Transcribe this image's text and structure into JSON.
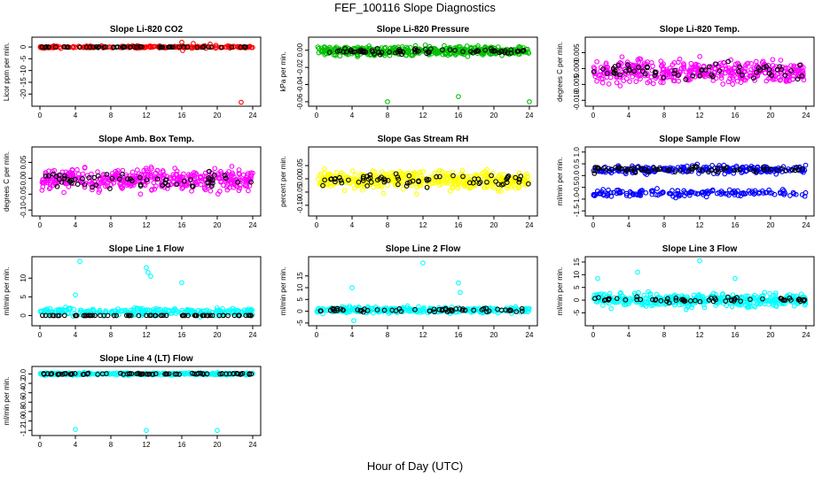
{
  "figure": {
    "title": "FEF_100116  Slope Diagnostics",
    "xlabel": "Hour of Day (UTC)"
  },
  "chart_data": [
    {
      "type": "scatter",
      "title": "Slope Li-820 CO2",
      "ylabel": "Licor ppm per min.",
      "color": "#ff0000",
      "xlim": [
        0,
        24
      ],
      "ylim": [
        -24,
        3
      ],
      "yticks": [
        0,
        -5,
        -10,
        -15,
        -20
      ],
      "ytick_labels": [
        "0",
        "-5",
        "-10",
        "-15",
        "-20"
      ],
      "xticks": [
        0,
        4,
        8,
        12,
        16,
        20,
        24
      ],
      "center": 0,
      "spread": 0.6,
      "n": 220,
      "pattern": "band",
      "outliers": [
        [
          16,
          2
        ],
        [
          17.3,
          1.5
        ],
        [
          16.1,
          -1.5
        ],
        [
          22.7,
          -23.5
        ],
        [
          19.2,
          1.2
        ]
      ],
      "black_spread": 0.3,
      "black_n": 60
    },
    {
      "type": "scatter",
      "title": "Slope Li-820 Pressure",
      "ylabel": "kPa per min.",
      "color": "#00c000",
      "xlim": [
        0,
        24
      ],
      "ylim": [
        -0.062,
        0.012
      ],
      "yticks": [
        0,
        -0.02,
        -0.04,
        -0.06
      ],
      "ytick_labels": [
        "0.00",
        "-0.02",
        "-0.04",
        "-0.06"
      ],
      "xticks": [
        0,
        4,
        8,
        12,
        16,
        20,
        24
      ],
      "center": -0.001,
      "spread": 0.007,
      "n": 400,
      "pattern": "band",
      "outliers": [
        [
          8,
          -0.06
        ],
        [
          16,
          -0.054
        ],
        [
          24,
          -0.06
        ]
      ],
      "black_spread": 0.004,
      "black_n": 70
    },
    {
      "type": "scatter",
      "title": "Slope Li-820 Temp.",
      "ylabel": "degrees C per min.",
      "color": "#ff00ff",
      "xlim": [
        0,
        24
      ],
      "ylim": [
        -0.011,
        0.009
      ],
      "yticks": [
        0.005,
        0,
        -0.005,
        -0.01
      ],
      "ytick_labels": [
        "0.005",
        "0.000",
        "-0.005",
        "-0.010"
      ],
      "xticks": [
        0,
        4,
        8,
        12,
        16,
        20,
        24
      ],
      "center": -0.001,
      "spread": 0.0045,
      "n": 420,
      "pattern": "band",
      "outliers": [],
      "black_spread": 0.003,
      "black_n": 60
    },
    {
      "type": "scatter",
      "title": "Slope Amb. Box Temp.",
      "ylabel": "degrees C per min.",
      "color": "#ff00ff",
      "xlim": [
        0,
        24
      ],
      "ylim": [
        -0.11,
        0.09
      ],
      "yticks": [
        0.05,
        0,
        -0.05,
        -0.1
      ],
      "ytick_labels": [
        "0.05",
        "0.00",
        "-0.05",
        "-0.10"
      ],
      "xticks": [
        0,
        4,
        8,
        12,
        16,
        20,
        24
      ],
      "center": -0.005,
      "spread": 0.042,
      "n": 420,
      "pattern": "band",
      "outliers": [],
      "black_spread": 0.03,
      "black_n": 60
    },
    {
      "type": "scatter",
      "title": "Slope Gas Stream RH",
      "ylabel": "percent per min.",
      "color": "#ffff00",
      "xlim": [
        0,
        24
      ],
      "ylim": [
        -0.13,
        0.11
      ],
      "yticks": [
        0.05,
        0,
        -0.05,
        -0.1
      ],
      "ytick_labels": [
        "0.05",
        "0.00",
        "-0.05",
        "-0.10"
      ],
      "xticks": [
        0,
        4,
        8,
        12,
        16,
        20,
        24
      ],
      "center": -0.005,
      "spread": 0.045,
      "n": 420,
      "pattern": "band",
      "outliers": [],
      "black_spread": 0.03,
      "black_n": 70
    },
    {
      "type": "scatter",
      "title": "Slope Sample Flow",
      "ylabel": "ml/min per min.",
      "color": "#0000ff",
      "xlim": [
        0,
        24
      ],
      "ylim": [
        -1.6,
        1.1
      ],
      "yticks": [
        1,
        0.5,
        0,
        -0.5,
        -1,
        -1.5
      ],
      "ytick_labels": [
        "1.0",
        "0.5",
        "0.0",
        "-0.5",
        "-1.0",
        "-1.5"
      ],
      "xticks": [
        0,
        4,
        8,
        12,
        16,
        20,
        24
      ],
      "center": 0.25,
      "spread": 0.22,
      "n": 380,
      "pattern": "twoband",
      "center2": -0.75,
      "spread2": 0.2,
      "outliers": [],
      "black_spread": 0.15,
      "black_n": 70
    },
    {
      "type": "scatter",
      "title": "Slope Line 1 Flow",
      "ylabel": "ml/min per min.",
      "color": "#00ffff",
      "xlim": [
        0,
        24
      ],
      "ylim": [
        -2,
        15
      ],
      "yticks": [
        0,
        5,
        10
      ],
      "ytick_labels": [
        "0",
        "5",
        "10"
      ],
      "xticks": [
        0,
        4,
        8,
        12,
        16,
        20,
        24
      ],
      "center": 1,
      "spread": 1.3,
      "n": 260,
      "pattern": "band",
      "outliers": [
        [
          4.5,
          14.5
        ],
        [
          4,
          5.5
        ],
        [
          12,
          12.8
        ],
        [
          12.5,
          10.5
        ],
        [
          16,
          8.8
        ],
        [
          12.2,
          11.5
        ]
      ],
      "black_spread": 0.05,
      "black_n": 70,
      "black_center": 0
    },
    {
      "type": "scatter",
      "title": "Slope Line 2 Flow",
      "ylabel": "ml/min per min.",
      "color": "#00ffff",
      "xlim": [
        0,
        24
      ],
      "ylim": [
        -5,
        22
      ],
      "yticks": [
        -5,
        0,
        5,
        10,
        15
      ],
      "ytick_labels": [
        "-5",
        "0",
        "5",
        "10",
        "15"
      ],
      "xticks": [
        0,
        4,
        8,
        12,
        16,
        20,
        24
      ],
      "center": 0.5,
      "spread": 1.6,
      "n": 300,
      "pattern": "band",
      "outliers": [
        [
          12,
          20.5
        ],
        [
          16,
          12
        ],
        [
          4,
          10
        ],
        [
          4.2,
          -4
        ],
        [
          16.2,
          8
        ]
      ],
      "black_spread": 1.2,
      "black_n": 60
    },
    {
      "type": "scatter",
      "title": "Slope Line 3 Flow",
      "ylabel": "ml/min per min.",
      "color": "#00ffff",
      "xlim": [
        0,
        24
      ],
      "ylim": [
        -9,
        16
      ],
      "yticks": [
        -5,
        0,
        5,
        10,
        15
      ],
      "ytick_labels": [
        "-5",
        "0",
        "5",
        "10",
        "15"
      ],
      "xticks": [
        0,
        4,
        8,
        12,
        16,
        20,
        24
      ],
      "center": 0,
      "spread": 3.2,
      "n": 420,
      "pattern": "band",
      "outliers": [
        [
          12,
          15.5
        ],
        [
          5,
          11
        ],
        [
          16,
          8.5
        ],
        [
          0.5,
          8.5
        ]
      ],
      "black_spread": 1.5,
      "black_n": 60
    },
    {
      "type": "scatter",
      "title": "Slope Line 4 (LT) Flow",
      "ylabel": "ml/min per min.",
      "color": "#00ffff",
      "xlim": [
        0,
        24
      ],
      "ylim": [
        -1.25,
        0.1
      ],
      "yticks": [
        0,
        -0.2,
        -0.4,
        -0.6,
        -0.8,
        -1.0,
        -1.2
      ],
      "ytick_labels": [
        "0.0",
        "-0.2",
        "-0.4",
        "-0.6",
        "-0.8",
        "-1.0",
        "-1.2"
      ],
      "xticks": [
        0,
        4,
        8,
        12,
        16,
        20,
        24
      ],
      "center": 0,
      "spread": 0.03,
      "n": 320,
      "pattern": "band",
      "outliers": [
        [
          4,
          -1.18
        ],
        [
          12,
          -1.2
        ],
        [
          20,
          -1.2
        ]
      ],
      "black_spread": 0.02,
      "black_n": 70
    }
  ]
}
